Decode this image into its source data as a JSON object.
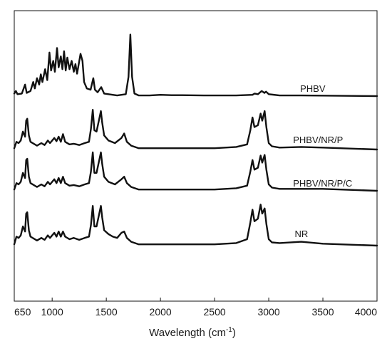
{
  "chart_data": {
    "type": "line",
    "xlabel_main": "Wavelength (cm",
    "xlabel_sup": "-1",
    "xlabel_close": ")",
    "ylabel": "",
    "xlim": [
      650,
      4000
    ],
    "x_ticks": [
      "650",
      "1000",
      "1500",
      "2000",
      "2500",
      "3000",
      "3500",
      "4000"
    ],
    "x_tick_values": [
      650,
      1000,
      1500,
      2000,
      2500,
      3000,
      3500,
      4000
    ],
    "y_ticks_shown": false,
    "series": [
      {
        "name": "PHBV",
        "offset": 3.0,
        "points": [
          [
            650,
            0.04
          ],
          [
            665,
            0.08
          ],
          [
            680,
            0.03
          ],
          [
            720,
            0.04
          ],
          [
            750,
            0.18
          ],
          [
            765,
            0.05
          ],
          [
            800,
            0.08
          ],
          [
            825,
            0.22
          ],
          [
            840,
            0.12
          ],
          [
            860,
            0.28
          ],
          [
            880,
            0.18
          ],
          [
            895,
            0.34
          ],
          [
            910,
            0.22
          ],
          [
            935,
            0.42
          ],
          [
            955,
            0.25
          ],
          [
            975,
            0.68
          ],
          [
            990,
            0.4
          ],
          [
            1010,
            0.55
          ],
          [
            1025,
            0.38
          ],
          [
            1045,
            0.75
          ],
          [
            1060,
            0.45
          ],
          [
            1080,
            0.62
          ],
          [
            1095,
            0.42
          ],
          [
            1110,
            0.7
          ],
          [
            1125,
            0.4
          ],
          [
            1140,
            0.6
          ],
          [
            1160,
            0.42
          ],
          [
            1180,
            0.55
          ],
          [
            1200,
            0.38
          ],
          [
            1215,
            0.5
          ],
          [
            1230,
            0.35
          ],
          [
            1262,
            0.66
          ],
          [
            1280,
            0.55
          ],
          [
            1295,
            0.22
          ],
          [
            1320,
            0.12
          ],
          [
            1355,
            0.1
          ],
          [
            1380,
            0.28
          ],
          [
            1395,
            0.1
          ],
          [
            1420,
            0.06
          ],
          [
            1453,
            0.14
          ],
          [
            1480,
            0.04
          ],
          [
            1600,
            0.01
          ],
          [
            1680,
            0.03
          ],
          [
            1705,
            0.3
          ],
          [
            1722,
            0.96
          ],
          [
            1738,
            0.3
          ],
          [
            1760,
            0.04
          ],
          [
            1800,
            0.01
          ],
          [
            1900,
            0.01
          ],
          [
            2000,
            0.02
          ],
          [
            2100,
            0.015
          ],
          [
            2200,
            0.015
          ],
          [
            2400,
            0.01
          ],
          [
            2700,
            0.01
          ],
          [
            2850,
            0.02
          ],
          [
            2870,
            0.04
          ],
          [
            2900,
            0.03
          ],
          [
            2935,
            0.08
          ],
          [
            2960,
            0.05
          ],
          [
            2975,
            0.07
          ],
          [
            3000,
            0.03
          ],
          [
            3100,
            0.01
          ],
          [
            3300,
            0.01
          ],
          [
            4000,
            0.0
          ]
        ]
      },
      {
        "name": "PHBV/NR/P",
        "offset": 2.0,
        "points": [
          [
            650,
            0.02
          ],
          [
            670,
            0.12
          ],
          [
            690,
            0.1
          ],
          [
            710,
            0.14
          ],
          [
            730,
            0.28
          ],
          [
            750,
            0.2
          ],
          [
            760,
            0.45
          ],
          [
            770,
            0.48
          ],
          [
            785,
            0.22
          ],
          [
            800,
            0.12
          ],
          [
            860,
            0.06
          ],
          [
            900,
            0.1
          ],
          [
            930,
            0.07
          ],
          [
            960,
            0.14
          ],
          [
            980,
            0.1
          ],
          [
            1020,
            0.18
          ],
          [
            1040,
            0.13
          ],
          [
            1060,
            0.2
          ],
          [
            1080,
            0.12
          ],
          [
            1100,
            0.24
          ],
          [
            1120,
            0.12
          ],
          [
            1160,
            0.08
          ],
          [
            1200,
            0.09
          ],
          [
            1250,
            0.07
          ],
          [
            1300,
            0.1
          ],
          [
            1340,
            0.12
          ],
          [
            1358,
            0.32
          ],
          [
            1375,
            0.62
          ],
          [
            1390,
            0.3
          ],
          [
            1410,
            0.28
          ],
          [
            1440,
            0.52
          ],
          [
            1450,
            0.6
          ],
          [
            1462,
            0.42
          ],
          [
            1480,
            0.22
          ],
          [
            1520,
            0.14
          ],
          [
            1580,
            0.1
          ],
          [
            1640,
            0.18
          ],
          [
            1665,
            0.25
          ],
          [
            1690,
            0.12
          ],
          [
            1730,
            0.06
          ],
          [
            1800,
            0.02
          ],
          [
            2000,
            0.02
          ],
          [
            2500,
            0.02
          ],
          [
            2700,
            0.04
          ],
          [
            2800,
            0.08
          ],
          [
            2830,
            0.3
          ],
          [
            2850,
            0.5
          ],
          [
            2868,
            0.35
          ],
          [
            2900,
            0.38
          ],
          [
            2925,
            0.56
          ],
          [
            2940,
            0.45
          ],
          [
            2962,
            0.6
          ],
          [
            2978,
            0.35
          ],
          [
            3000,
            0.1
          ],
          [
            3030,
            0.05
          ],
          [
            3100,
            0.03
          ],
          [
            3300,
            0.04
          ],
          [
            3500,
            0.03
          ],
          [
            4000,
            0.0
          ]
        ]
      },
      {
        "name": "PHBV/NR/P/C",
        "offset": 1.0,
        "points": [
          [
            650,
            0.02
          ],
          [
            670,
            0.12
          ],
          [
            690,
            0.1
          ],
          [
            710,
            0.14
          ],
          [
            730,
            0.28
          ],
          [
            750,
            0.2
          ],
          [
            760,
            0.48
          ],
          [
            770,
            0.5
          ],
          [
            785,
            0.22
          ],
          [
            800,
            0.12
          ],
          [
            860,
            0.06
          ],
          [
            900,
            0.1
          ],
          [
            930,
            0.07
          ],
          [
            960,
            0.14
          ],
          [
            980,
            0.1
          ],
          [
            1020,
            0.18
          ],
          [
            1040,
            0.12
          ],
          [
            1060,
            0.2
          ],
          [
            1080,
            0.12
          ],
          [
            1100,
            0.22
          ],
          [
            1120,
            0.12
          ],
          [
            1160,
            0.08
          ],
          [
            1200,
            0.09
          ],
          [
            1250,
            0.07
          ],
          [
            1300,
            0.1
          ],
          [
            1340,
            0.12
          ],
          [
            1358,
            0.3
          ],
          [
            1375,
            0.6
          ],
          [
            1390,
            0.28
          ],
          [
            1410,
            0.28
          ],
          [
            1440,
            0.52
          ],
          [
            1450,
            0.6
          ],
          [
            1462,
            0.42
          ],
          [
            1480,
            0.22
          ],
          [
            1520,
            0.14
          ],
          [
            1580,
            0.1
          ],
          [
            1640,
            0.18
          ],
          [
            1665,
            0.22
          ],
          [
            1690,
            0.12
          ],
          [
            1730,
            0.06
          ],
          [
            1800,
            0.02
          ],
          [
            2000,
            0.02
          ],
          [
            2500,
            0.02
          ],
          [
            2700,
            0.04
          ],
          [
            2800,
            0.08
          ],
          [
            2830,
            0.3
          ],
          [
            2850,
            0.48
          ],
          [
            2868,
            0.33
          ],
          [
            2900,
            0.36
          ],
          [
            2925,
            0.55
          ],
          [
            2940,
            0.44
          ],
          [
            2962,
            0.56
          ],
          [
            2978,
            0.33
          ],
          [
            3000,
            0.1
          ],
          [
            3030,
            0.05
          ],
          [
            3100,
            0.03
          ],
          [
            3300,
            0.03
          ],
          [
            3500,
            0.03
          ],
          [
            4000,
            0.0
          ]
        ]
      },
      {
        "name": "NR",
        "offset": 0.0,
        "points": [
          [
            650,
            0.02
          ],
          [
            670,
            0.14
          ],
          [
            690,
            0.12
          ],
          [
            710,
            0.16
          ],
          [
            730,
            0.3
          ],
          [
            750,
            0.22
          ],
          [
            760,
            0.5
          ],
          [
            770,
            0.52
          ],
          [
            785,
            0.24
          ],
          [
            800,
            0.14
          ],
          [
            860,
            0.08
          ],
          [
            900,
            0.12
          ],
          [
            930,
            0.09
          ],
          [
            960,
            0.16
          ],
          [
            980,
            0.12
          ],
          [
            1020,
            0.2
          ],
          [
            1040,
            0.14
          ],
          [
            1060,
            0.22
          ],
          [
            1080,
            0.14
          ],
          [
            1100,
            0.22
          ],
          [
            1120,
            0.14
          ],
          [
            1160,
            0.1
          ],
          [
            1200,
            0.12
          ],
          [
            1250,
            0.09
          ],
          [
            1300,
            0.12
          ],
          [
            1340,
            0.14
          ],
          [
            1358,
            0.32
          ],
          [
            1375,
            0.62
          ],
          [
            1390,
            0.3
          ],
          [
            1410,
            0.3
          ],
          [
            1440,
            0.54
          ],
          [
            1450,
            0.62
          ],
          [
            1462,
            0.44
          ],
          [
            1480,
            0.24
          ],
          [
            1520,
            0.18
          ],
          [
            1560,
            0.14
          ],
          [
            1600,
            0.12
          ],
          [
            1640,
            0.2
          ],
          [
            1665,
            0.22
          ],
          [
            1690,
            0.12
          ],
          [
            1730,
            0.06
          ],
          [
            1800,
            0.02
          ],
          [
            2000,
            0.02
          ],
          [
            2500,
            0.02
          ],
          [
            2700,
            0.04
          ],
          [
            2800,
            0.1
          ],
          [
            2830,
            0.36
          ],
          [
            2850,
            0.56
          ],
          [
            2868,
            0.38
          ],
          [
            2900,
            0.42
          ],
          [
            2925,
            0.64
          ],
          [
            2940,
            0.5
          ],
          [
            2962,
            0.58
          ],
          [
            2978,
            0.34
          ],
          [
            3000,
            0.1
          ],
          [
            3030,
            0.05
          ],
          [
            3100,
            0.04
          ],
          [
            3300,
            0.06
          ],
          [
            3500,
            0.03
          ],
          [
            4000,
            0.0
          ]
        ]
      }
    ]
  }
}
